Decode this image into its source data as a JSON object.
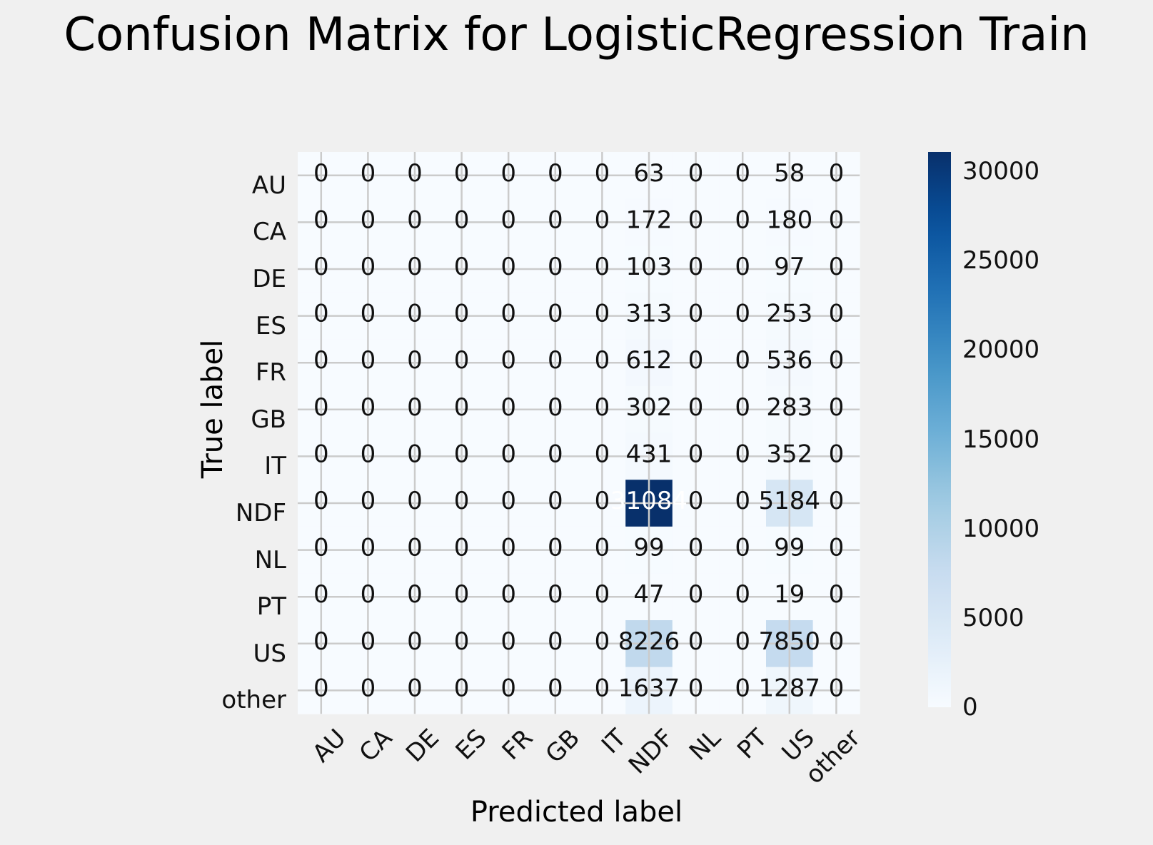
{
  "chart_data": {
    "type": "heatmap",
    "title": "Confusion Matrix for LogisticRegression Train",
    "xlabel": "Predicted label",
    "ylabel": "True label",
    "labels": [
      "AU",
      "CA",
      "DE",
      "ES",
      "FR",
      "GB",
      "IT",
      "NDF",
      "NL",
      "PT",
      "US",
      "other"
    ],
    "matrix": [
      [
        0,
        0,
        0,
        0,
        0,
        0,
        0,
        63,
        0,
        0,
        58,
        0
      ],
      [
        0,
        0,
        0,
        0,
        0,
        0,
        0,
        172,
        0,
        0,
        180,
        0
      ],
      [
        0,
        0,
        0,
        0,
        0,
        0,
        0,
        103,
        0,
        0,
        97,
        0
      ],
      [
        0,
        0,
        0,
        0,
        0,
        0,
        0,
        313,
        0,
        0,
        253,
        0
      ],
      [
        0,
        0,
        0,
        0,
        0,
        0,
        0,
        612,
        0,
        0,
        536,
        0
      ],
      [
        0,
        0,
        0,
        0,
        0,
        0,
        0,
        302,
        0,
        0,
        283,
        0
      ],
      [
        0,
        0,
        0,
        0,
        0,
        0,
        0,
        431,
        0,
        0,
        352,
        0
      ],
      [
        0,
        0,
        0,
        0,
        0,
        0,
        0,
        31084,
        0,
        0,
        5184,
        0
      ],
      [
        0,
        0,
        0,
        0,
        0,
        0,
        0,
        99,
        0,
        0,
        99,
        0
      ],
      [
        0,
        0,
        0,
        0,
        0,
        0,
        0,
        47,
        0,
        0,
        19,
        0
      ],
      [
        0,
        0,
        0,
        0,
        0,
        0,
        0,
        8226,
        0,
        0,
        7850,
        0
      ],
      [
        0,
        0,
        0,
        0,
        0,
        0,
        0,
        1637,
        0,
        0,
        1287,
        0
      ]
    ],
    "colormap": "Blues",
    "colorbar": {
      "min": 0,
      "max": 31084,
      "ticks": [
        0,
        5000,
        10000,
        15000,
        20000,
        25000,
        30000
      ]
    },
    "grid": true
  },
  "colors": {
    "background": "#f0f0f0",
    "gridline": "#cbcbcb"
  }
}
